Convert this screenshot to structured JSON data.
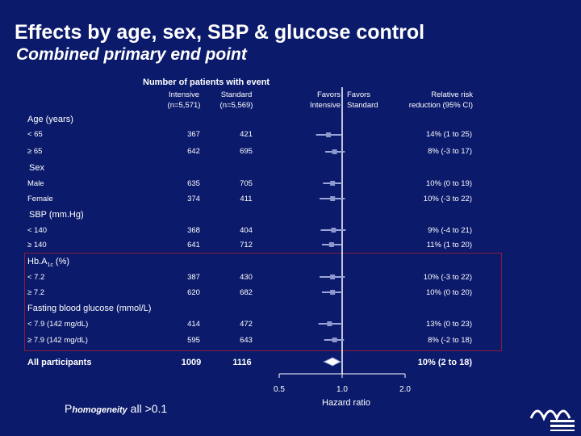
{
  "title": "Effects by age, sex, SBP & glucose control",
  "subtitle": "Combined primary end point",
  "header": {
    "main": "Number of patients with event",
    "intensive_label": "Intensive",
    "intensive_n": "(n=5,571)",
    "standard_label": "Standard",
    "standard_n": "(n=5,569)",
    "favors_intensive_1": "Favors",
    "favors_intensive_2": "Intensive",
    "favors_standard_1": "Favors",
    "favors_standard_2": "Standard",
    "rr_label_1": "Relative risk",
    "rr_label_2": "reduction (95% CI)"
  },
  "sections": {
    "age": "Age (years)",
    "sex": "Sex",
    "sbp": "SBP (mm.Hg)",
    "hba1c_main": "Hb.A",
    "hba1c_sub": "1c",
    "hba1c_unit": " (%)",
    "fbg": "Fasting blood glucose (mmol/L)"
  },
  "rows": [
    {
      "label": "< 65",
      "n1": "367",
      "n2": "421",
      "rr": "14% (1 to 25)"
    },
    {
      "label": "≥ 65",
      "n1": "642",
      "n2": "695",
      "rr": "8% (-3 to 17)"
    },
    {
      "label": "Male",
      "n1": "635",
      "n2": "705",
      "rr": "10% (0 to 19)"
    },
    {
      "label": "Female",
      "n1": "374",
      "n2": "411",
      "rr": "10% (-3 to 22)"
    },
    {
      "label": "< 140",
      "n1": "368",
      "n2": "404",
      "rr": "9% (-4 to 21)"
    },
    {
      "label": "≥ 140",
      "n1": "641",
      "n2": "712",
      "rr": "11% (1 to 20)"
    },
    {
      "label": "< 7.2",
      "n1": "387",
      "n2": "430",
      "rr": "10% (-3 to 22)"
    },
    {
      "label": "≥ 7.2",
      "n1": "620",
      "n2": "682",
      "rr": "10% (0 to 20)"
    },
    {
      "label": "< 7.9 (142 mg/dL)",
      "n1": "414",
      "n2": "472",
      "rr": "13% (0 to 23)"
    },
    {
      "label": "≥ 7.9 (142 mg/dL)",
      "n1": "595",
      "n2": "643",
      "rr": "8% (-2 to 18)"
    }
  ],
  "overall": {
    "label": "All participants",
    "n1": "1009",
    "n2": "1116",
    "rr": "10% (2 to 18)"
  },
  "footnote": {
    "p": "P",
    "sub": "homogeneity",
    "rest": " all >0.1"
  },
  "colors": {
    "background": "#0b1a6b",
    "box_border": "#8b1a3a",
    "axis": "#ffffff",
    "ci_line": "#9aa6d9"
  },
  "chart_data": {
    "type": "forest",
    "title": "Effects by age, sex, SBP & glucose control",
    "subtitle": "Combined primary end point",
    "xlabel": "Hazard ratio",
    "x_scale": "log",
    "xlim": [
      0.5,
      2.0
    ],
    "x_ticks": [
      0.5,
      1.0,
      2.0
    ],
    "x_tick_labels": [
      "0.5",
      "1.0",
      "2.0"
    ],
    "reference_line": 1.0,
    "series": [
      {
        "name": "< 65 years",
        "hr": 0.86,
        "lo": 0.75,
        "hi": 0.99
      },
      {
        "name": "≥ 65 years",
        "hr": 0.92,
        "lo": 0.83,
        "hi": 1.03
      },
      {
        "name": "Male",
        "hr": 0.9,
        "lo": 0.81,
        "hi": 1.0
      },
      {
        "name": "Female",
        "hr": 0.9,
        "lo": 0.78,
        "hi": 1.03
      },
      {
        "name": "SBP < 140",
        "hr": 0.91,
        "lo": 0.79,
        "hi": 1.04
      },
      {
        "name": "SBP ≥ 140",
        "hr": 0.89,
        "lo": 0.8,
        "hi": 0.99
      },
      {
        "name": "HbA1c < 7.2",
        "hr": 0.9,
        "lo": 0.78,
        "hi": 1.03
      },
      {
        "name": "HbA1c ≥ 7.2",
        "hr": 0.9,
        "lo": 0.8,
        "hi": 1.0
      },
      {
        "name": "FBG < 7.9",
        "hr": 0.87,
        "lo": 0.77,
        "hi": 1.0
      },
      {
        "name": "FBG ≥ 7.9",
        "hr": 0.92,
        "lo": 0.82,
        "hi": 1.02
      },
      {
        "name": "All participants",
        "hr": 0.9,
        "lo": 0.82,
        "hi": 0.98,
        "overall": true
      }
    ]
  }
}
